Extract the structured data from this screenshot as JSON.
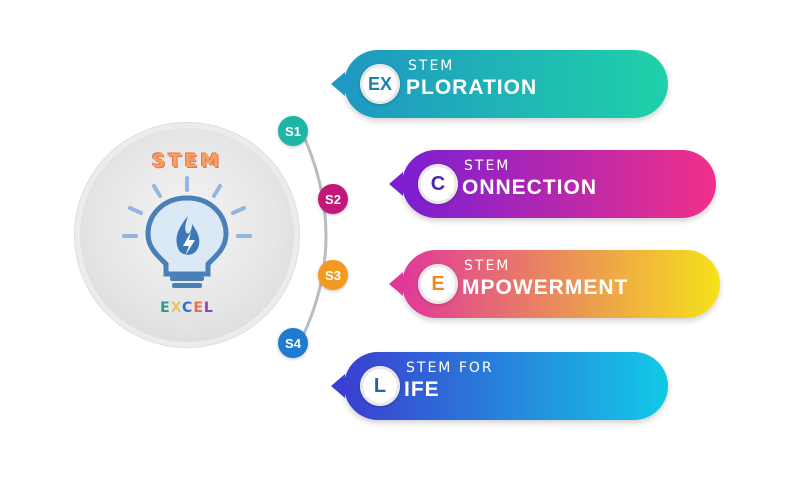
{
  "logo": {
    "top_text": "STEM",
    "bottom_letters": [
      "E",
      "X",
      "C",
      "E",
      "L"
    ],
    "icon": "lightbulb-flame-icon"
  },
  "steps": [
    {
      "id": "S1",
      "color": "#1fb5a6",
      "banner": {
        "sup": "STEM",
        "badge": "EX",
        "main": "PLORATION",
        "gradient": [
          "#1f98c2",
          "#1fd1a9"
        ],
        "badge_color": "#1f7fb3"
      }
    },
    {
      "id": "S2",
      "color": "#c2187a",
      "banner": {
        "sup": "STEM",
        "badge": "C",
        "main": "ONNECTION",
        "gradient": [
          "#7b1fd1",
          "#f0308a"
        ],
        "badge_color": "#4a2ab3"
      }
    },
    {
      "id": "S3",
      "color": "#f39a1e",
      "banner": {
        "sup": "STEM",
        "badge": "E",
        "main": "MPOWERMENT",
        "gradient": [
          "#e0389a",
          "#f5e21a"
        ],
        "badge_color": "#f08a1e"
      }
    },
    {
      "id": "S4",
      "color": "#1f7ad1",
      "banner": {
        "sup": "STEM FOR",
        "badge": "L",
        "main": "IFE",
        "gradient": [
          "#3b3fd1",
          "#12c9e6"
        ],
        "badge_color": "#2c5fa8"
      }
    }
  ]
}
